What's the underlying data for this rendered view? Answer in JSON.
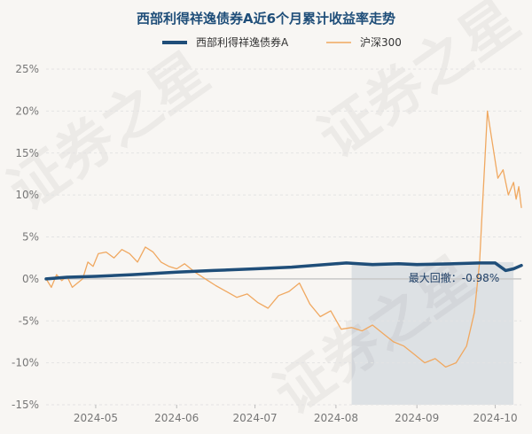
{
  "chart_data": {
    "type": "line",
    "title": "西部利得祥逸债券A近6个月累计收益率走势",
    "xlabel": "",
    "ylabel": "",
    "ylim": [
      -15,
      25
    ],
    "y_ticks": [
      -15,
      -10,
      -5,
      0,
      5,
      10,
      15,
      20,
      25
    ],
    "y_tick_labels": [
      "-15%",
      "-10%",
      "-5%",
      "0%",
      "5%",
      "10%",
      "15%",
      "20%",
      "25%"
    ],
    "x_range": [
      "2024-04-12",
      "2024-10-11"
    ],
    "x_ticks": [
      "2024-05-01",
      "2024-06-01",
      "2024-07-01",
      "2024-08-01",
      "2024-09-01",
      "2024-10-01"
    ],
    "x_tick_labels": [
      "2024-05",
      "2024-06",
      "2024-07",
      "2024-08",
      "2024-09",
      "2024-10"
    ],
    "grid": "horizontal",
    "legend_position": "top-center",
    "series": [
      {
        "name": "西部利得祥逸债券A",
        "color": "#1f4e79",
        "x": [
          "2024-04-12",
          "2024-04-20",
          "2024-05-01",
          "2024-05-15",
          "2024-06-01",
          "2024-06-15",
          "2024-07-01",
          "2024-07-15",
          "2024-08-01",
          "2024-08-05",
          "2024-08-15",
          "2024-08-25",
          "2024-09-01",
          "2024-09-15",
          "2024-09-25",
          "2024-10-01",
          "2024-10-05",
          "2024-10-08",
          "2024-10-11"
        ],
        "values": [
          0.0,
          0.2,
          0.3,
          0.5,
          0.8,
          1.0,
          1.2,
          1.4,
          1.8,
          1.9,
          1.7,
          1.8,
          1.7,
          1.8,
          1.9,
          1.9,
          1.0,
          1.2,
          1.6
        ]
      },
      {
        "name": "沪深300",
        "color": "#f0a860",
        "x": [
          "2024-04-12",
          "2024-04-14",
          "2024-04-16",
          "2024-04-18",
          "2024-04-20",
          "2024-04-22",
          "2024-04-24",
          "2024-04-26",
          "2024-04-28",
          "2024-04-30",
          "2024-05-02",
          "2024-05-05",
          "2024-05-08",
          "2024-05-11",
          "2024-05-14",
          "2024-05-17",
          "2024-05-20",
          "2024-05-23",
          "2024-05-26",
          "2024-05-29",
          "2024-06-01",
          "2024-06-04",
          "2024-06-08",
          "2024-06-12",
          "2024-06-16",
          "2024-06-20",
          "2024-06-24",
          "2024-06-28",
          "2024-07-02",
          "2024-07-06",
          "2024-07-10",
          "2024-07-14",
          "2024-07-18",
          "2024-07-22",
          "2024-07-26",
          "2024-07-30",
          "2024-08-03",
          "2024-08-07",
          "2024-08-11",
          "2024-08-15",
          "2024-08-19",
          "2024-08-23",
          "2024-08-27",
          "2024-08-31",
          "2024-09-04",
          "2024-09-08",
          "2024-09-12",
          "2024-09-16",
          "2024-09-20",
          "2024-09-23",
          "2024-09-25",
          "2024-09-26",
          "2024-09-27",
          "2024-09-28",
          "2024-09-30",
          "2024-10-02",
          "2024-10-04",
          "2024-10-06",
          "2024-10-08",
          "2024-10-09",
          "2024-10-10",
          "2024-10-11"
        ],
        "values": [
          0.0,
          -1.0,
          0.5,
          -0.2,
          0.3,
          -1.0,
          -0.5,
          0.0,
          2.0,
          1.5,
          3.0,
          3.2,
          2.5,
          3.5,
          3.0,
          2.0,
          3.8,
          3.2,
          2.0,
          1.5,
          1.2,
          1.8,
          0.8,
          0.0,
          -0.8,
          -1.5,
          -2.2,
          -1.8,
          -2.8,
          -3.5,
          -2.0,
          -1.5,
          -0.5,
          -3.0,
          -4.5,
          -3.8,
          -6.0,
          -5.8,
          -6.2,
          -5.5,
          -6.5,
          -7.5,
          -8.0,
          -9.0,
          -10.0,
          -9.5,
          -10.5,
          -10.0,
          -8.0,
          -4.0,
          2.0,
          8.0,
          14.0,
          20.0,
          16.0,
          12.0,
          13.0,
          10.0,
          11.5,
          9.5,
          11.0,
          8.5
        ]
      }
    ],
    "annotations": [
      {
        "text": "最大回撤：-0.98%",
        "color": "#1f3f66"
      }
    ],
    "shaded_region": {
      "x": [
        "2024-08-07",
        "2024-10-08"
      ],
      "label": "drawdown period"
    },
    "watermark": "证券之星"
  }
}
